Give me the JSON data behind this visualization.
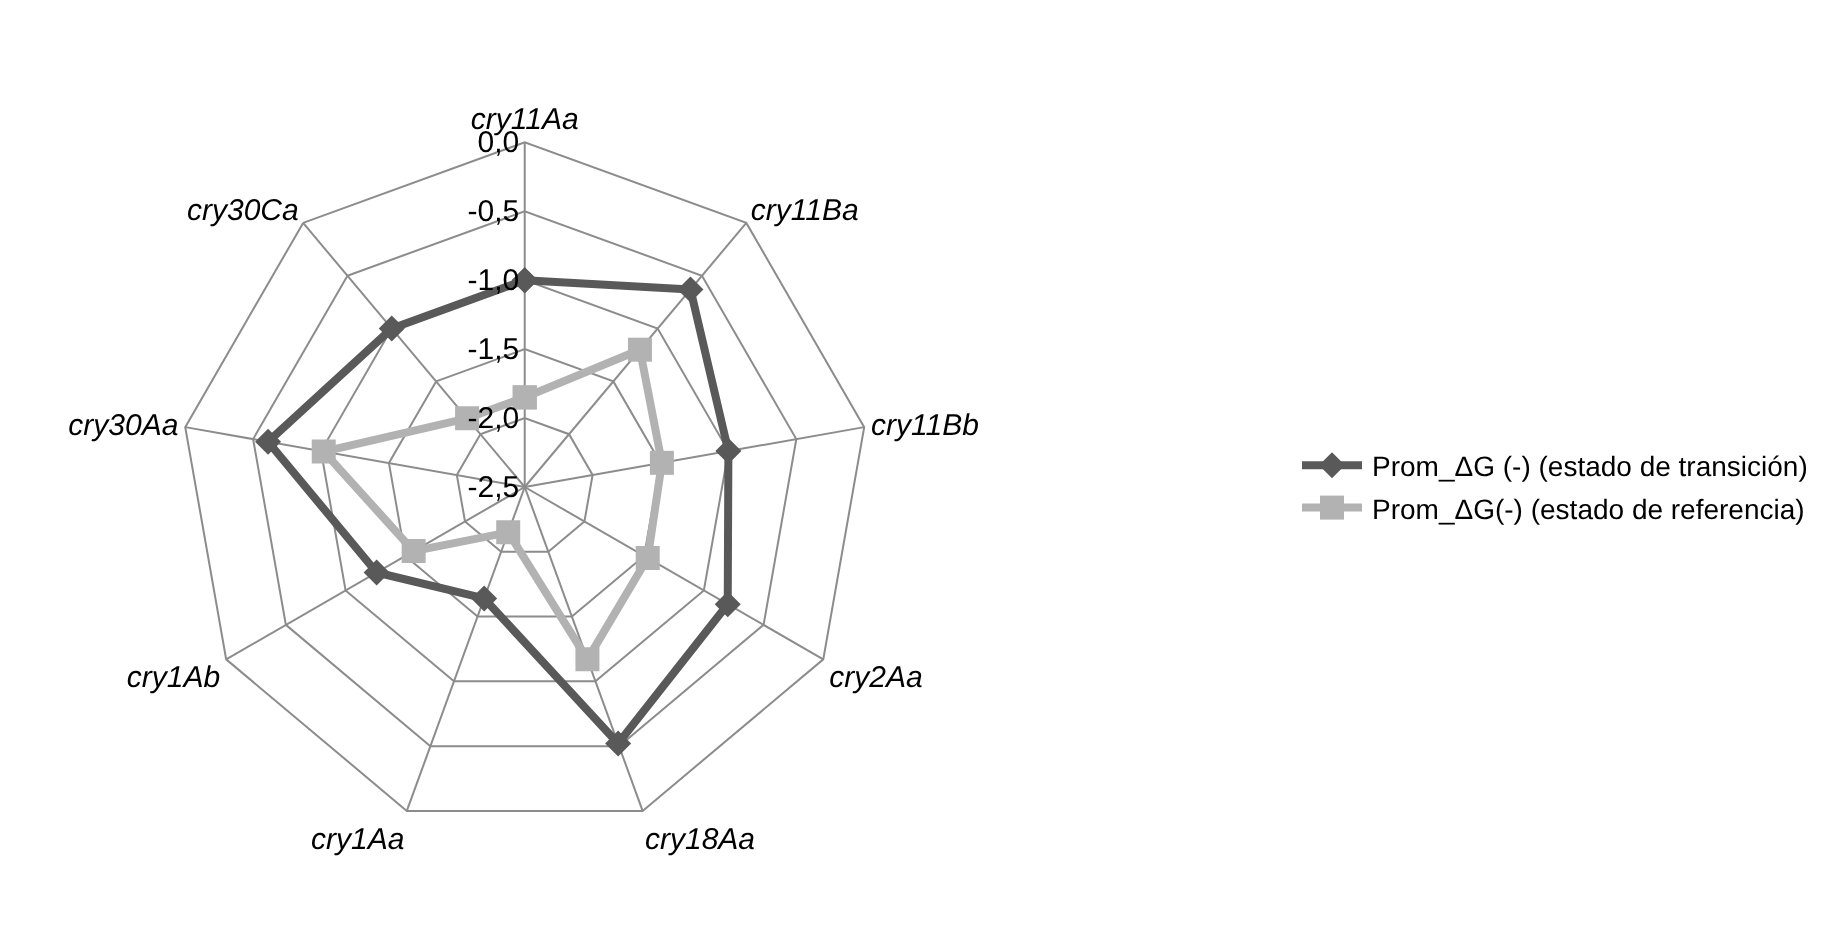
{
  "chart_data": {
    "type": "radar",
    "categories": [
      "cry11Aa",
      "cry11Ba",
      "cry11Bb",
      "cry2Aa",
      "cry18Aa",
      "cry1Aa",
      "cry1Ab",
      "cry30Aa",
      "cry30Ca"
    ],
    "series": [
      {
        "name": "Prom_ΔG (-) (estado de transición)",
        "color": "#595959",
        "marker": "diamond",
        "values": [
          -1.0,
          -0.63,
          -1.0,
          -0.8,
          -0.52,
          -1.64,
          -1.26,
          -0.61,
          -1.0
        ]
      },
      {
        "name": "Prom_ΔG(-) (estado de referencia)",
        "color": "#b2b2b2",
        "marker": "square",
        "values": [
          -1.85,
          -1.2,
          -1.49,
          -1.47,
          -1.17,
          -2.15,
          -1.57,
          -1.02,
          -1.85
        ]
      }
    ],
    "ylim": [
      -2.5,
      0.0
    ],
    "yticks": [
      {
        "value": -2.5,
        "label": "-2,5"
      },
      {
        "value": -2.0,
        "label": "-2,0"
      },
      {
        "value": -1.5,
        "label": "-1,5"
      },
      {
        "value": -1.0,
        "label": "-1,0"
      },
      {
        "value": -0.5,
        "label": "-0,5"
      },
      {
        "value": 0.0,
        "label": "0,0"
      }
    ],
    "grid": true,
    "legend": "right"
  }
}
